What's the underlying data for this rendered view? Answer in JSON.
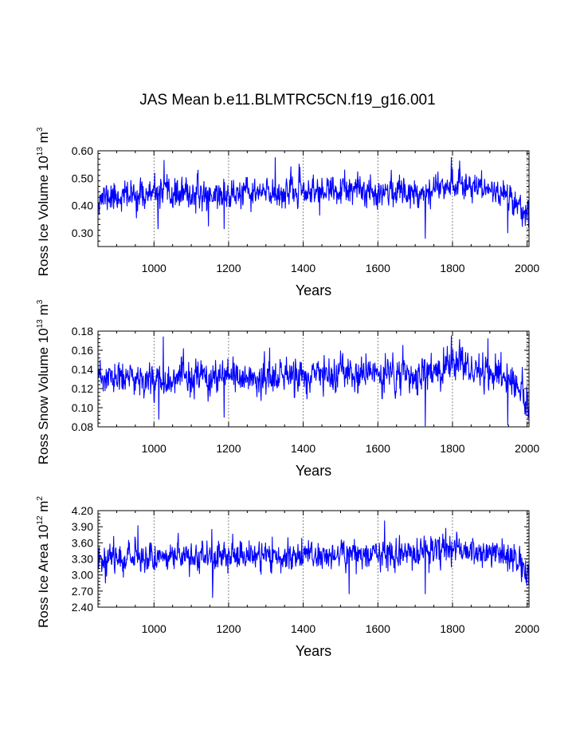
{
  "chart_data": {
    "type": "line",
    "title": "JAS Mean b.e11.BLMTRC5CN.f19_g16.001",
    "line_color": "#0000ff",
    "grid": "dashed vertical lines at major x ticks",
    "x": {
      "start": 850,
      "end": 2005,
      "step": 1
    },
    "panels": [
      {
        "id": "ice_volume",
        "ylabel": {
          "main": "Ross Ice Volume 10",
          "sup1": "13",
          "mid": " m",
          "sup2": "3"
        },
        "xlabel": "Years",
        "xlim": [
          850,
          2005
        ],
        "xticks": [
          1000,
          1200,
          1400,
          1600,
          1800,
          2000
        ],
        "ylim": [
          0.25,
          0.6
        ],
        "yticks": [
          0.3,
          0.4,
          0.5,
          0.6
        ],
        "ytick_labels": [
          "0.30",
          "0.40",
          "0.50",
          "0.60"
        ],
        "series": {
          "seed": 11,
          "base": 0.445,
          "noise_sd": 0.026,
          "anchors": [
            [
              850,
              0.43
            ],
            [
              1000,
              0.44
            ],
            [
              1200,
              0.44
            ],
            [
              1400,
              0.45
            ],
            [
              1600,
              0.455
            ],
            [
              1720,
              0.45
            ],
            [
              1800,
              0.485
            ],
            [
              1900,
              0.46
            ],
            [
              1960,
              0.43
            ],
            [
              2005,
              0.36
            ]
          ],
          "spikes": [
            [
              1727,
              0.28
            ],
            [
              1948,
              0.3
            ],
            [
              1797,
              0.575
            ],
            [
              1325,
              0.575
            ],
            [
              1027,
              0.565
            ],
            [
              2004,
              0.32
            ],
            [
              1146,
              0.325
            ],
            [
              1188,
              0.315
            ],
            [
              1011,
              0.315
            ]
          ]
        }
      },
      {
        "id": "snow_volume",
        "ylabel": {
          "main": "Ross Snow Volume 10",
          "sup1": "13",
          "mid": " m",
          "sup2": "3"
        },
        "xlabel": "Years",
        "xlim": [
          850,
          2005
        ],
        "xticks": [
          1000,
          1200,
          1400,
          1600,
          1800,
          2000
        ],
        "ylim": [
          0.08,
          0.18
        ],
        "yticks": [
          0.08,
          0.1,
          0.12,
          0.14,
          0.16,
          0.18
        ],
        "ytick_labels": [
          "0.08",
          "0.10",
          "0.12",
          "0.14",
          "0.16",
          "0.18"
        ],
        "series": {
          "seed": 23,
          "base": 0.131,
          "noise_sd": 0.0085,
          "anchors": [
            [
              850,
              0.13
            ],
            [
              1000,
              0.13
            ],
            [
              1200,
              0.13
            ],
            [
              1400,
              0.133
            ],
            [
              1600,
              0.135
            ],
            [
              1720,
              0.133
            ],
            [
              1800,
              0.145
            ],
            [
              1900,
              0.138
            ],
            [
              1960,
              0.128
            ],
            [
              2005,
              0.105
            ]
          ],
          "spikes": [
            [
              1727,
              0.08
            ],
            [
              1948,
              0.082
            ],
            [
              1797,
              0.175
            ],
            [
              1025,
              0.174
            ],
            [
              1895,
              0.172
            ],
            [
              2004,
              0.09
            ],
            [
              1013,
              0.088
            ],
            [
              1188,
              0.09
            ]
          ]
        }
      },
      {
        "id": "ice_area",
        "ylabel": {
          "main": "Ross Ice Area 10",
          "sup1": "12",
          "mid": " m",
          "sup2": "2"
        },
        "xlabel": "Years",
        "xlim": [
          850,
          2005
        ],
        "xticks": [
          1000,
          1200,
          1400,
          1600,
          1800,
          2000
        ],
        "ylim": [
          2.4,
          4.2
        ],
        "yticks": [
          2.4,
          2.7,
          3.0,
          3.3,
          3.6,
          3.9,
          4.2
        ],
        "ytick_labels": [
          "2.40",
          "2.70",
          "3.00",
          "3.30",
          "3.60",
          "3.90",
          "4.20"
        ],
        "series": {
          "seed": 37,
          "base": 3.36,
          "noise_sd": 0.13,
          "anchors": [
            [
              850,
              3.33
            ],
            [
              1000,
              3.35
            ],
            [
              1200,
              3.35
            ],
            [
              1400,
              3.36
            ],
            [
              1600,
              3.4
            ],
            [
              1720,
              3.4
            ],
            [
              1800,
              3.5
            ],
            [
              1900,
              3.42
            ],
            [
              1960,
              3.35
            ],
            [
              2005,
              2.95
            ]
          ],
          "spikes": [
            [
              1157,
              2.58
            ],
            [
              1727,
              2.65
            ],
            [
              1523,
              2.65
            ],
            [
              1618,
              4.01
            ],
            [
              1782,
              3.87
            ],
            [
              1155,
              3.85
            ],
            [
              957,
              3.92
            ],
            [
              2004,
              2.82
            ],
            [
              870,
              2.85
            ]
          ]
        }
      }
    ]
  }
}
